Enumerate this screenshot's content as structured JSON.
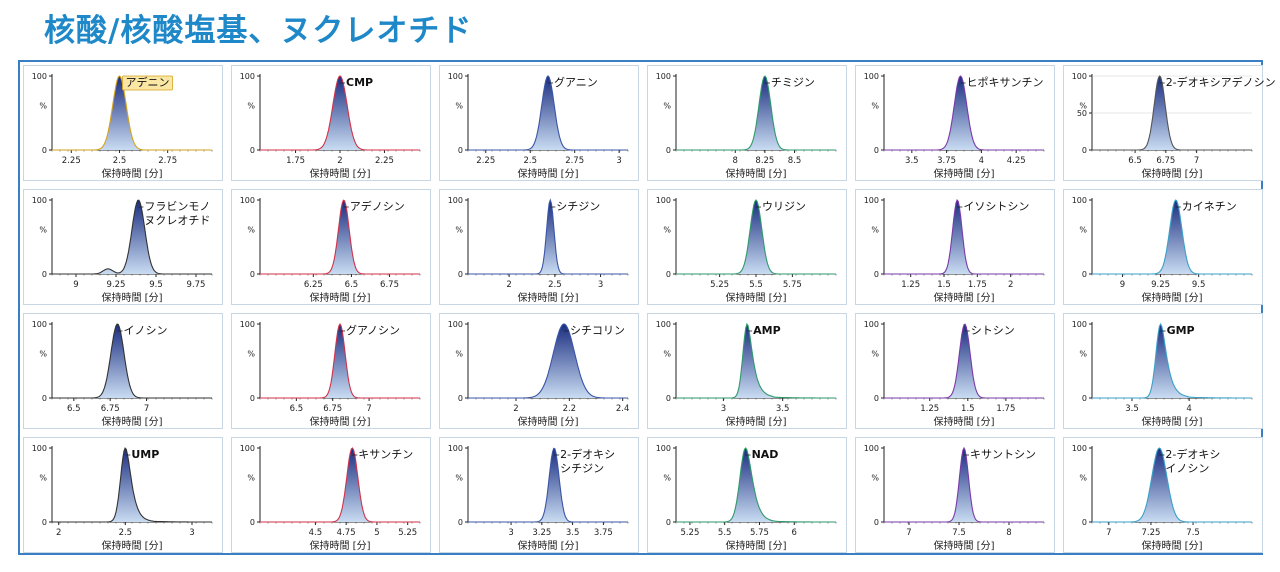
{
  "title": "核酸/核酸塩基、ヌクレオチド",
  "colors": {
    "title": "#1e88c8",
    "frame": "#3a7fc4",
    "peak_fill_top": "#1a2d80",
    "peak_fill_bottom": "#c9dcf2"
  },
  "chart_data": [
    {
      "type": "area",
      "label": "アデニン",
      "label_highlighted": true,
      "apex": 2.5,
      "width": 0.035,
      "xlim": [
        2.15,
        2.98
      ],
      "xticks": [
        "2.25",
        "2.5",
        "2.75"
      ],
      "xlabel": "保持時間 [分]",
      "yticks": [
        "0",
        "%",
        "100"
      ],
      "ylim": [
        0,
        100
      ],
      "line_color": "#d4a21c"
    },
    {
      "type": "area",
      "label": "CMP",
      "label_bold": true,
      "apex": 2.0,
      "width": 0.04,
      "xlim": [
        1.55,
        2.45
      ],
      "xticks": [
        "1.75",
        "2",
        "2.25"
      ],
      "xlabel": "保持時間 [分]",
      "yticks": [
        "0",
        "%",
        "100"
      ],
      "ylim": [
        0,
        100
      ],
      "line_color": "#d0324a"
    },
    {
      "type": "area",
      "label": "グアニン",
      "apex": 2.6,
      "width": 0.035,
      "xlim": [
        2.15,
        3.05
      ],
      "xticks": [
        "2.25",
        "2.5",
        "2.75",
        "3"
      ],
      "xlabel": "保持時間 [分]",
      "yticks": [
        "0",
        "%",
        "100"
      ],
      "ylim": [
        0,
        100
      ],
      "line_color": "#3a55a8"
    },
    {
      "type": "area",
      "label": "チミジン",
      "apex": 8.25,
      "width": 0.05,
      "xlim": [
        7.5,
        8.85
      ],
      "xticks": [
        "8",
        "8.25",
        "8.5"
      ],
      "xlabel": "保持時間 [分]",
      "yticks": [
        "0",
        "%",
        "100"
      ],
      "ylim": [
        0,
        100
      ],
      "line_color": "#2e9a6a"
    },
    {
      "type": "area",
      "label": "ヒポキサンチン",
      "apex": 3.85,
      "width": 0.045,
      "xlim": [
        3.3,
        4.45
      ],
      "xticks": [
        "3.5",
        "3.75",
        "4",
        "4.25"
      ],
      "xlabel": "保持時間 [分]",
      "yticks": [
        "0",
        "%",
        "100"
      ],
      "ylim": [
        0,
        100
      ],
      "line_color": "#7a3aa8"
    },
    {
      "type": "area",
      "label": "2-デオキシアデノシン",
      "apex": 6.7,
      "width": 0.045,
      "xlim": [
        6.15,
        7.45
      ],
      "xticks": [
        "6.5",
        "6.75",
        "7"
      ],
      "xlabel": "保持時間 [分]",
      "yticks": [
        "0",
        "50",
        "%",
        "100"
      ],
      "ylim": [
        0,
        100
      ],
      "line_color": "#555555",
      "gridlines": true
    },
    {
      "type": "area",
      "label": "フラビンモノ\nヌクレオチド",
      "apex": 9.39,
      "width": 0.04,
      "xlim": [
        8.85,
        9.85
      ],
      "xticks": [
        "9",
        "9.25",
        "9.5",
        "9.75"
      ],
      "xlabel": "保持時間 [分]",
      "yticks": [
        "0",
        "%",
        "100"
      ],
      "ylim": [
        0,
        100
      ],
      "line_color": "#333333",
      "minor_peak": {
        "apex": 9.2,
        "height": 7
      }
    },
    {
      "type": "area",
      "label": "アデノシン",
      "apex": 6.45,
      "width": 0.035,
      "xlim": [
        5.9,
        6.95
      ],
      "xticks": [
        "6.25",
        "6.5",
        "6.75"
      ],
      "xlabel": "保持時間 [分]",
      "yticks": [
        "0",
        "%",
        "100"
      ],
      "ylim": [
        0,
        100
      ],
      "line_color": "#d0324a"
    },
    {
      "type": "area",
      "label": "シチジン",
      "apex": 2.45,
      "width": 0.04,
      "xlim": [
        1.55,
        3.3
      ],
      "xticks": [
        "2",
        "2.5",
        "3"
      ],
      "xlabel": "保持時間 [分]",
      "yticks": [
        "0",
        "%",
        "100"
      ],
      "ylim": [
        0,
        100
      ],
      "line_color": "#3a55a8"
    },
    {
      "type": "area",
      "label": "ウリジン",
      "apex": 5.5,
      "width": 0.04,
      "xlim": [
        4.95,
        6.05
      ],
      "xticks": [
        "5.25",
        "5.5",
        "5.75"
      ],
      "xlabel": "保持時間 [分]",
      "yticks": [
        "0",
        "%",
        "100"
      ],
      "ylim": [
        0,
        100
      ],
      "line_color": "#2e9a6a"
    },
    {
      "type": "area",
      "label": "イソシトシン",
      "apex": 1.6,
      "width": 0.035,
      "xlim": [
        1.05,
        2.25
      ],
      "xticks": [
        "1.25",
        "1.5",
        "1.75",
        "2"
      ],
      "xlabel": "保持時間 [分]",
      "yticks": [
        "0",
        "%",
        "100"
      ],
      "ylim": [
        0,
        100
      ],
      "line_color": "#7a3aa8"
    },
    {
      "type": "area",
      "label": "カイネチン",
      "apex": 9.35,
      "width": 0.04,
      "xlim": [
        8.8,
        9.85
      ],
      "xticks": [
        "9",
        "9.25",
        "9.5"
      ],
      "xlabel": "保持時間 [分]",
      "yticks": [
        "0",
        "%",
        "100"
      ],
      "ylim": [
        0,
        100
      ],
      "line_color": "#3aa0c8"
    },
    {
      "type": "area",
      "label": "イノシン",
      "apex": 6.8,
      "width": 0.045,
      "xlim": [
        6.35,
        7.45
      ],
      "xticks": [
        "6.5",
        "6.75",
        "7"
      ],
      "xlabel": "保持時間 [分]",
      "yticks": [
        "0",
        "%",
        "100"
      ],
      "ylim": [
        0,
        100
      ],
      "line_color": "#333333"
    },
    {
      "type": "area",
      "label": "グアノシン",
      "apex": 6.8,
      "width": 0.035,
      "xlim": [
        6.25,
        7.35
      ],
      "xticks": [
        "6.5",
        "6.75",
        "7"
      ],
      "xlabel": "保持時間 [分]",
      "yticks": [
        "0",
        "%",
        "100"
      ],
      "ylim": [
        0,
        100
      ],
      "line_color": "#d0324a"
    },
    {
      "type": "area",
      "label": "シチコリン",
      "apex": 2.18,
      "width": 0.04,
      "xlim": [
        1.82,
        2.42
      ],
      "xticks": [
        "2",
        "2.2",
        "2.4"
      ],
      "xlabel": "保持時間 [分]",
      "yticks": [
        "0",
        "%",
        "100"
      ],
      "ylim": [
        0,
        100
      ],
      "line_color": "#3a55a8"
    },
    {
      "type": "area",
      "label": "AMP",
      "label_bold": true,
      "apex": 3.2,
      "width": 0.035,
      "tail": 0.12,
      "xlim": [
        2.6,
        3.95
      ],
      "xticks": [
        "3",
        "3.5"
      ],
      "xlabel": "保持時間 [分]",
      "yticks": [
        "0",
        "%",
        "100"
      ],
      "ylim": [
        0,
        100
      ],
      "line_color": "#2e9a6a"
    },
    {
      "type": "area",
      "label": "シトシン",
      "apex": 1.48,
      "width": 0.035,
      "xlim": [
        0.95,
        2.0
      ],
      "xticks": [
        "1.25",
        "1.5",
        "1.75"
      ],
      "xlabel": "保持時間 [分]",
      "yticks": [
        "0",
        "%",
        "100"
      ],
      "ylim": [
        0,
        100
      ],
      "line_color": "#7a3aa8"
    },
    {
      "type": "area",
      "label": "GMP",
      "label_bold": true,
      "apex": 3.75,
      "width": 0.04,
      "tail": 0.13,
      "xlim": [
        3.15,
        4.55
      ],
      "xticks": [
        "3.5",
        "4"
      ],
      "xlabel": "保持時間 [分]",
      "yticks": [
        "0",
        "%",
        "100"
      ],
      "ylim": [
        0,
        100
      ],
      "line_color": "#3aa0c8"
    },
    {
      "type": "area",
      "label": "UMP",
      "label_bold": true,
      "apex": 2.5,
      "width": 0.035,
      "tail": 0.1,
      "xlim": [
        1.95,
        3.15
      ],
      "xticks": [
        "2",
        "2.5",
        "3"
      ],
      "xlabel": "保持時間 [分]",
      "yticks": [
        "0",
        "%",
        "100"
      ],
      "ylim": [
        0,
        100
      ],
      "line_color": "#333333"
    },
    {
      "type": "area",
      "label": "キサンチン",
      "apex": 4.8,
      "width": 0.045,
      "xlim": [
        4.05,
        5.35
      ],
      "xticks": [
        "4.5",
        "4.75",
        "5",
        "5.25"
      ],
      "xlabel": "保持時間 [分]",
      "yticks": [
        "0",
        "%",
        "100"
      ],
      "ylim": [
        0,
        100
      ],
      "line_color": "#d0324a"
    },
    {
      "type": "area",
      "label": "2-デオキシ\nシチジン",
      "apex": 3.35,
      "width": 0.04,
      "xlim": [
        2.65,
        3.95
      ],
      "xticks": [
        "3",
        "3.25",
        "3.5",
        "3.75"
      ],
      "xlabel": "保持時間 [分]",
      "yticks": [
        "0",
        "%",
        "100"
      ],
      "ylim": [
        0,
        100
      ],
      "line_color": "#3a55a8"
    },
    {
      "type": "area",
      "label": "NAD",
      "label_bold": true,
      "apex": 5.65,
      "width": 0.04,
      "tail": 0.1,
      "xlim": [
        5.15,
        6.3
      ],
      "xticks": [
        "5.25",
        "5.5",
        "5.75",
        "6"
      ],
      "xlabel": "保持時間 [分]",
      "yticks": [
        "0",
        "%",
        "100"
      ],
      "ylim": [
        0,
        100
      ],
      "line_color": "#2e9a6a"
    },
    {
      "type": "area",
      "label": "キサントシン",
      "apex": 7.55,
      "width": 0.045,
      "xlim": [
        6.75,
        8.35
      ],
      "xticks": [
        "7",
        "7.5",
        "8"
      ],
      "xlabel": "保持時間 [分]",
      "yticks": [
        "0",
        "%",
        "100"
      ],
      "ylim": [
        0,
        100
      ],
      "line_color": "#7a3aa8"
    },
    {
      "type": "area",
      "label": "2-デオキシ\nイノシン",
      "apex": 7.3,
      "width": 0.045,
      "xlim": [
        6.9,
        7.85
      ],
      "xticks": [
        "7",
        "7.25",
        "7.5"
      ],
      "xlabel": "保持時間 [分]",
      "yticks": [
        "0",
        "%",
        "100"
      ],
      "ylim": [
        0,
        100
      ],
      "line_color": "#3aa0c8"
    }
  ]
}
